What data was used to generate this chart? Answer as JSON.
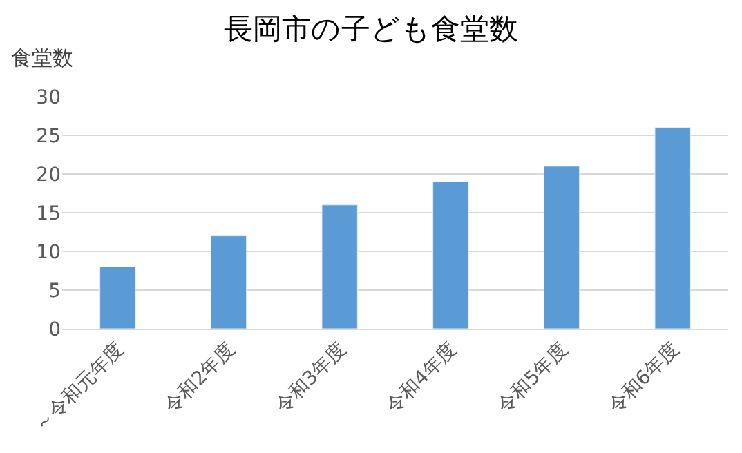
{
  "chart_data": {
    "type": "bar",
    "title": "長岡市の子ども食堂数",
    "ylabel": "食堂数",
    "categories": [
      "～令和元年度",
      "令和2年度",
      "令和3年度",
      "令和4年度",
      "令和5年度",
      "令和6年度"
    ],
    "values": [
      8,
      12,
      16,
      19,
      21,
      26
    ],
    "color": "#5b9bd5",
    "ylim": [
      0,
      30
    ],
    "yticks": [
      0,
      5,
      10,
      15,
      20,
      25,
      30
    ],
    "grid": "y",
    "legend": false
  }
}
